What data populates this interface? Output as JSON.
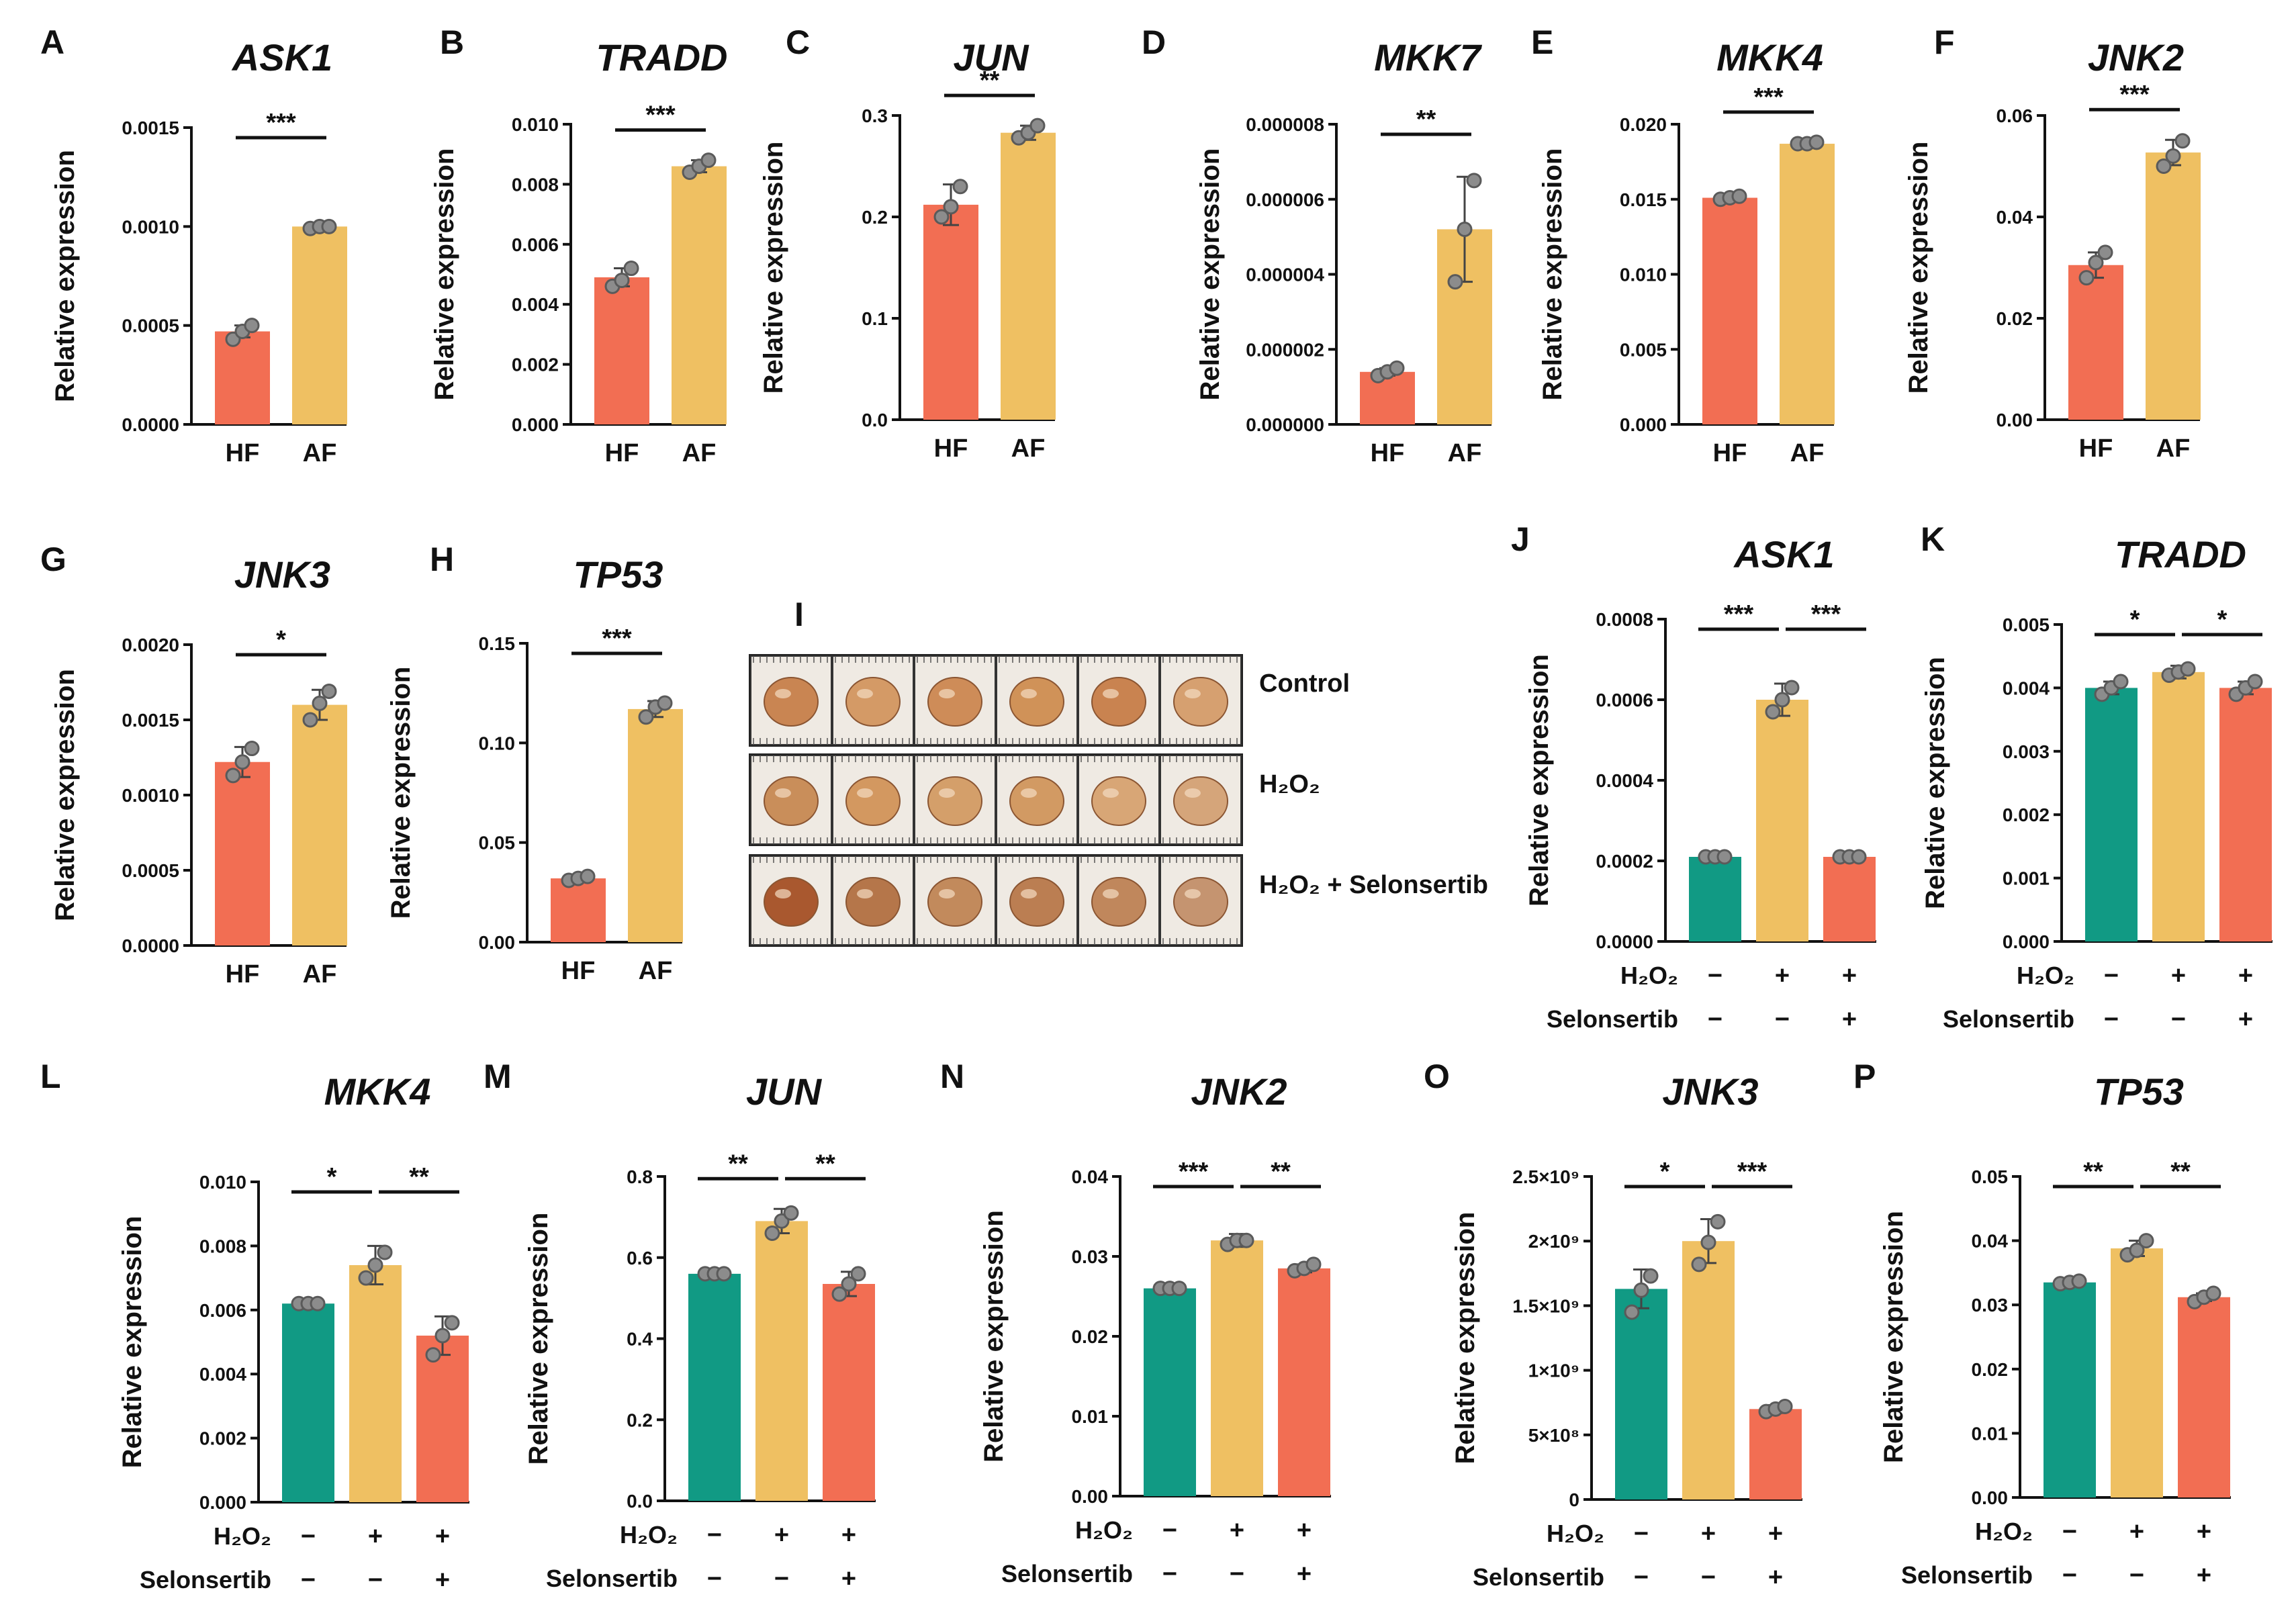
{
  "colors": {
    "HF": "#F26E53",
    "AF": "#EFC062",
    "control": "#119A84",
    "h2o2": "#EFC062",
    "h2o2_selonsertib": "#F26E53",
    "dot_fill": "#8C8C8C",
    "dot_stroke": "#5A5A5A",
    "axis": "#111111"
  },
  "common": {
    "ylabel": "Relative expression",
    "x_hf": "HF",
    "x_af": "AF",
    "row_h2o2": "H₂O₂",
    "row_selonsertib": "Selonsertib",
    "sign_minus": "−",
    "sign_plus": "+"
  },
  "image_panel": {
    "label": "I",
    "rows": [
      "Control",
      "H₂O₂",
      "H₂O₂ + Selonsertib"
    ]
  },
  "chart_data": [
    {
      "id": "A",
      "type": "bar",
      "title": "ASK1",
      "ylabel": "Relative expression",
      "categories": [
        "HF",
        "AF"
      ],
      "values": [
        0.00047,
        0.001
      ],
      "points": [
        [
          0.00043,
          0.00047,
          0.0005
        ],
        [
          0.00099,
          0.001,
          0.001
        ]
      ],
      "error": [
        3e-05,
        5e-06
      ],
      "ylim": [
        0,
        0.0015
      ],
      "yticks": [
        0,
        0.0005,
        0.001,
        0.0015
      ],
      "yticklabels": [
        "0.0000",
        "0.0005",
        "0.0010",
        "0.0015"
      ],
      "significance": [
        {
          "from": 0,
          "to": 1,
          "label": "***"
        }
      ]
    },
    {
      "id": "B",
      "type": "bar",
      "title": "TRADD",
      "ylabel": "Relative expression",
      "categories": [
        "HF",
        "AF"
      ],
      "values": [
        0.0049,
        0.0086
      ],
      "points": [
        [
          0.0046,
          0.0048,
          0.0052
        ],
        [
          0.0084,
          0.0086,
          0.0088
        ]
      ],
      "error": [
        0.0003,
        0.0002
      ],
      "ylim": [
        0,
        0.01
      ],
      "yticks": [
        0,
        0.002,
        0.004,
        0.006,
        0.008,
        0.01
      ],
      "yticklabels": [
        "0.000",
        "0.002",
        "0.004",
        "0.006",
        "0.008",
        "0.010"
      ],
      "significance": [
        {
          "from": 0,
          "to": 1,
          "label": "***"
        }
      ]
    },
    {
      "id": "C",
      "type": "bar",
      "title": "JUN",
      "ylabel": "Relative expression",
      "categories": [
        "HF",
        "AF"
      ],
      "values": [
        0.212,
        0.283
      ],
      "points": [
        [
          0.2,
          0.21,
          0.23
        ],
        [
          0.278,
          0.283,
          0.29
        ]
      ],
      "error": [
        0.02,
        0.007
      ],
      "ylim": [
        0,
        0.3
      ],
      "yticks": [
        0,
        0.1,
        0.2,
        0.3
      ],
      "yticklabels": [
        "0.0",
        "0.1",
        "0.2",
        "0.3"
      ],
      "significance": [
        {
          "from": 0,
          "to": 1,
          "label": "**"
        }
      ]
    },
    {
      "id": "D",
      "type": "bar",
      "title": "MKK7",
      "ylabel": "Relative expression",
      "categories": [
        "HF",
        "AF"
      ],
      "values": [
        1.4e-06,
        5.2e-06
      ],
      "points": [
        [
          1.3e-06,
          1.4e-06,
          1.5e-06
        ],
        [
          3.8e-06,
          5.2e-06,
          6.5e-06
        ]
      ],
      "error": [
        1e-07,
        1.4e-06
      ],
      "ylim": [
        0,
        8e-06
      ],
      "yticks": [
        0,
        2e-06,
        4e-06,
        6e-06,
        8e-06
      ],
      "yticklabels": [
        "0.000000",
        "0.000002",
        "0.000004",
        "0.000006",
        "0.000008"
      ],
      "significance": [
        {
          "from": 0,
          "to": 1,
          "label": "**"
        }
      ]
    },
    {
      "id": "E",
      "type": "bar",
      "title": "MKK4",
      "ylabel": "Relative expression",
      "categories": [
        "HF",
        "AF"
      ],
      "values": [
        0.0151,
        0.0187
      ],
      "points": [
        [
          0.015,
          0.0151,
          0.0152
        ],
        [
          0.0187,
          0.0187,
          0.0188
        ]
      ],
      "error": [
        0.0001,
        0.0001
      ],
      "ylim": [
        0,
        0.02
      ],
      "yticks": [
        0,
        0.005,
        0.01,
        0.015,
        0.02
      ],
      "yticklabels": [
        "0.000",
        "0.005",
        "0.010",
        "0.015",
        "0.020"
      ],
      "significance": [
        {
          "from": 0,
          "to": 1,
          "label": "***"
        }
      ]
    },
    {
      "id": "F",
      "type": "bar",
      "title": "JNK2",
      "ylabel": "Relative expression",
      "categories": [
        "HF",
        "AF"
      ],
      "values": [
        0.0305,
        0.0527
      ],
      "points": [
        [
          0.028,
          0.031,
          0.033
        ],
        [
          0.05,
          0.052,
          0.055
        ]
      ],
      "error": [
        0.0025,
        0.0025
      ],
      "ylim": [
        0,
        0.06
      ],
      "yticks": [
        0,
        0.02,
        0.04,
        0.06
      ],
      "yticklabels": [
        "0.00",
        "0.02",
        "0.04",
        "0.06"
      ],
      "significance": [
        {
          "from": 0,
          "to": 1,
          "label": "***"
        }
      ]
    },
    {
      "id": "G",
      "type": "bar",
      "title": "JNK3",
      "ylabel": "Relative expression",
      "categories": [
        "HF",
        "AF"
      ],
      "values": [
        0.00122,
        0.0016
      ],
      "points": [
        [
          0.00113,
          0.00122,
          0.00131
        ],
        [
          0.0015,
          0.00161,
          0.00169
        ]
      ],
      "error": [
        0.0001,
        0.0001
      ],
      "ylim": [
        0,
        0.002
      ],
      "yticks": [
        0,
        0.0005,
        0.001,
        0.0015,
        0.002
      ],
      "yticklabels": [
        "0.0000",
        "0.0005",
        "0.0010",
        "0.0015",
        "0.0020"
      ],
      "significance": [
        {
          "from": 0,
          "to": 1,
          "label": "*"
        }
      ]
    },
    {
      "id": "H",
      "type": "bar",
      "title": "TP53",
      "ylabel": "Relative expression",
      "categories": [
        "HF",
        "AF"
      ],
      "values": [
        0.032,
        0.117
      ],
      "points": [
        [
          0.031,
          0.032,
          0.033
        ],
        [
          0.113,
          0.118,
          0.12
        ]
      ],
      "error": [
        0.0015,
        0.004
      ],
      "ylim": [
        0,
        0.15
      ],
      "yticks": [
        0,
        0.05,
        0.1,
        0.15
      ],
      "yticklabels": [
        "0.00",
        "0.05",
        "0.10",
        "0.15"
      ],
      "significance": [
        {
          "from": 0,
          "to": 1,
          "label": "***"
        }
      ]
    },
    {
      "id": "J",
      "type": "bar",
      "title": "ASK1",
      "ylabel": "Relative expression",
      "categories": [
        "Control",
        "H₂O₂",
        "H₂O₂ + Selonsertib"
      ],
      "values": [
        0.00021,
        0.0006,
        0.00021
      ],
      "points": [
        [
          0.00021,
          0.00021,
          0.00021
        ],
        [
          0.00057,
          0.0006,
          0.00063
        ],
        [
          0.00021,
          0.00021,
          0.00021
        ]
      ],
      "error": [
        5e-06,
        4e-05,
        5e-06
      ],
      "ylim": [
        0,
        0.0008
      ],
      "yticks": [
        0,
        0.0002,
        0.0004,
        0.0006,
        0.0008
      ],
      "yticklabels": [
        "0.0000",
        "0.0002",
        "0.0004",
        "0.0006",
        "0.0008"
      ],
      "h2o2": [
        "−",
        "+",
        "+"
      ],
      "selonsertib": [
        "−",
        "−",
        "+"
      ],
      "significance": [
        {
          "from": 0,
          "to": 1,
          "label": "***"
        },
        {
          "from": 1,
          "to": 2,
          "label": "***"
        }
      ]
    },
    {
      "id": "K",
      "type": "bar",
      "title": "TRADD",
      "ylabel": "Relative expression",
      "categories": [
        "Control",
        "H₂O₂",
        "H₂O₂ + Selonsertib"
      ],
      "values": [
        0.004,
        0.00425,
        0.004
      ],
      "points": [
        [
          0.0039,
          0.004,
          0.0041
        ],
        [
          0.0042,
          0.00425,
          0.0043
        ],
        [
          0.0039,
          0.004,
          0.0041
        ]
      ],
      "error": [
        0.0001,
        0.0001,
        0.0001
      ],
      "ylim": [
        0,
        0.005
      ],
      "yticks": [
        0,
        0.001,
        0.002,
        0.003,
        0.004,
        0.005
      ],
      "yticklabels": [
        "0.000",
        "0.001",
        "0.002",
        "0.003",
        "0.004",
        "0.005"
      ],
      "h2o2": [
        "−",
        "+",
        "+"
      ],
      "selonsertib": [
        "−",
        "−",
        "+"
      ],
      "significance": [
        {
          "from": 0,
          "to": 1,
          "label": "*"
        },
        {
          "from": 1,
          "to": 2,
          "label": "*"
        }
      ]
    },
    {
      "id": "L",
      "type": "bar",
      "title": "MKK4",
      "ylabel": "Relative expression",
      "categories": [
        "Control",
        "H₂O₂",
        "H₂O₂ + Selonsertib"
      ],
      "values": [
        0.0062,
        0.0074,
        0.0052
      ],
      "points": [
        [
          0.0062,
          0.0062,
          0.0062
        ],
        [
          0.007,
          0.0074,
          0.0078
        ],
        [
          0.0046,
          0.0052,
          0.0056
        ]
      ],
      "error": [
        5e-05,
        0.0006,
        0.0006
      ],
      "ylim": [
        0,
        0.01
      ],
      "yticks": [
        0,
        0.002,
        0.004,
        0.006,
        0.008,
        0.01
      ],
      "yticklabels": [
        "0.000",
        "0.002",
        "0.004",
        "0.006",
        "0.008",
        "0.010"
      ],
      "h2o2": [
        "−",
        "+",
        "+"
      ],
      "selonsertib": [
        "−",
        "−",
        "+"
      ],
      "significance": [
        {
          "from": 0,
          "to": 1,
          "label": "*"
        },
        {
          "from": 1,
          "to": 2,
          "label": "**"
        }
      ]
    },
    {
      "id": "M",
      "type": "bar",
      "title": "JUN",
      "ylabel": "Relative expression",
      "categories": [
        "Control",
        "H₂O₂",
        "H₂O₂ + Selonsertib"
      ],
      "values": [
        0.56,
        0.69,
        0.535
      ],
      "points": [
        [
          0.56,
          0.56,
          0.56
        ],
        [
          0.66,
          0.69,
          0.71
        ],
        [
          0.51,
          0.535,
          0.56
        ]
      ],
      "error": [
        0.005,
        0.03,
        0.03
      ],
      "ylim": [
        0,
        0.8
      ],
      "yticks": [
        0,
        0.2,
        0.4,
        0.6,
        0.8
      ],
      "yticklabels": [
        "0.0",
        "0.2",
        "0.4",
        "0.6",
        "0.8"
      ],
      "h2o2": [
        "−",
        "+",
        "+"
      ],
      "selonsertib": [
        "−",
        "−",
        "+"
      ],
      "significance": [
        {
          "from": 0,
          "to": 1,
          "label": "**"
        },
        {
          "from": 1,
          "to": 2,
          "label": "**"
        }
      ]
    },
    {
      "id": "N",
      "type": "bar",
      "title": "JNK2",
      "ylabel": "Relative expression",
      "categories": [
        "Control",
        "H₂O₂",
        "H₂O₂ + Selonsertib"
      ],
      "values": [
        0.026,
        0.032,
        0.0285
      ],
      "points": [
        [
          0.026,
          0.026,
          0.026
        ],
        [
          0.0315,
          0.032,
          0.032
        ],
        [
          0.0282,
          0.0285,
          0.029
        ]
      ],
      "error": [
        0.0002,
        0.0008,
        0.0005
      ],
      "ylim": [
        0,
        0.04
      ],
      "yticks": [
        0,
        0.01,
        0.02,
        0.03,
        0.04
      ],
      "yticklabels": [
        "0.00",
        "0.01",
        "0.02",
        "0.03",
        "0.04"
      ],
      "h2o2": [
        "−",
        "+",
        "+"
      ],
      "selonsertib": [
        "−",
        "−",
        "+"
      ],
      "significance": [
        {
          "from": 0,
          "to": 1,
          "label": "***"
        },
        {
          "from": 1,
          "to": 2,
          "label": "**"
        }
      ]
    },
    {
      "id": "O",
      "type": "bar",
      "title": "JNK3",
      "ylabel": "Relative expression",
      "categories": [
        "Control",
        "H₂O₂",
        "H₂O₂ + Selonsertib"
      ],
      "values": [
        1630000000,
        2000000000,
        700000000
      ],
      "points": [
        [
          1450000000,
          1620000000,
          1730000000
        ],
        [
          1820000000,
          1990000000,
          2150000000
        ],
        [
          680000000,
          700000000,
          720000000
        ]
      ],
      "error": [
        150000000,
        170000000,
        30000000
      ],
      "ylim": [
        0,
        2500000000
      ],
      "yticks": [
        0,
        500000000,
        1000000000,
        1500000000,
        2000000000,
        2500000000
      ],
      "yticklabels": [
        "0",
        "5×10⁸",
        "1×10⁹",
        "1.5×10⁹",
        "2×10⁹",
        "2.5×10⁹"
      ],
      "h2o2": [
        "−",
        "+",
        "+"
      ],
      "selonsertib": [
        "−",
        "−",
        "+"
      ],
      "significance": [
        {
          "from": 0,
          "to": 1,
          "label": "*"
        },
        {
          "from": 1,
          "to": 2,
          "label": "***"
        }
      ]
    },
    {
      "id": "P",
      "type": "bar",
      "title": "TP53",
      "ylabel": "Relative expression",
      "categories": [
        "Control",
        "H₂O₂",
        "H₂O₂ + Selonsertib"
      ],
      "values": [
        0.0335,
        0.0388,
        0.0312
      ],
      "points": [
        [
          0.0333,
          0.0335,
          0.0337
        ],
        [
          0.0378,
          0.0385,
          0.04
        ],
        [
          0.0305,
          0.0312,
          0.0318
        ]
      ],
      "error": [
        0.0002,
        0.0012,
        0.0006
      ],
      "ylim": [
        0,
        0.05
      ],
      "yticks": [
        0,
        0.01,
        0.02,
        0.03,
        0.04,
        0.05
      ],
      "yticklabels": [
        "0.00",
        "0.01",
        "0.02",
        "0.03",
        "0.04",
        "0.05"
      ],
      "h2o2": [
        "−",
        "+",
        "+"
      ],
      "selonsertib": [
        "−",
        "−",
        "+"
      ],
      "significance": [
        {
          "from": 0,
          "to": 1,
          "label": "**"
        },
        {
          "from": 1,
          "to": 2,
          "label": "**"
        }
      ]
    }
  ]
}
